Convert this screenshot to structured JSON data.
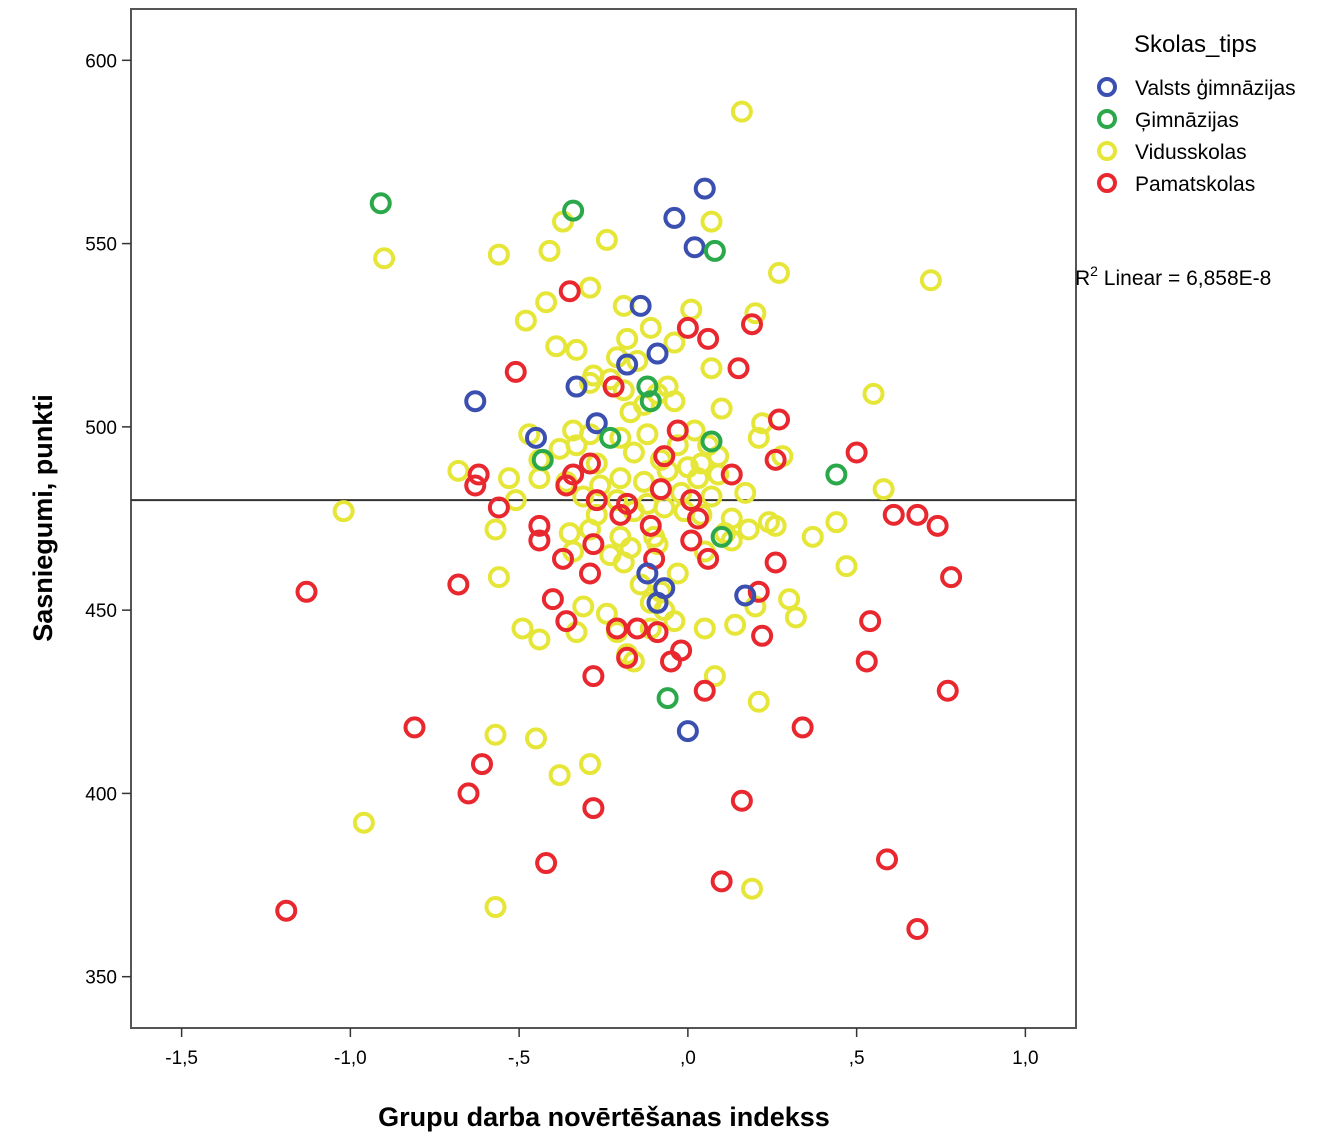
{
  "chart_data": {
    "type": "scatter",
    "xlabel": "Grupu darba novērtēšanas indekss",
    "ylabel": "Sasniegumi, punkti",
    "xlim": [
      -1.65,
      1.15
    ],
    "ylim": [
      336,
      614
    ],
    "x_ticks": [
      -1.5,
      -1.0,
      -0.5,
      0.0,
      0.5,
      1.0
    ],
    "x_tick_labels": [
      "-1,5",
      "-1,0",
      "-,5",
      ",0",
      ",5",
      "1,0"
    ],
    "y_ticks": [
      350,
      400,
      450,
      500,
      550,
      600
    ],
    "y_tick_labels": [
      "350",
      "400",
      "450",
      "500",
      "550",
      "600"
    ],
    "grid": false,
    "legend": {
      "title": "Skolas_tips",
      "placement": "right-top",
      "entries": [
        {
          "label": "Valsts ģimnāzijas",
          "color": "#3b4fb0"
        },
        {
          "label": "Ģimnāzijas",
          "color": "#2aa84a"
        },
        {
          "label": "Vidusskolas",
          "color": "#e6e639"
        },
        {
          "label": "Pamatskolas",
          "color": "#e8282e"
        }
      ]
    },
    "fit_line": {
      "type": "linear",
      "y": 480,
      "label_prefix": "R",
      "label_sup": "2",
      "label_suffix": " Linear = 6,858E-8"
    },
    "series": [
      {
        "name": "Vidusskolas",
        "color": "#e6e639",
        "points": [
          [
            0.16,
            586
          ],
          [
            0.07,
            556
          ],
          [
            -0.37,
            556
          ],
          [
            -0.56,
            547
          ],
          [
            -0.41,
            548
          ],
          [
            -0.24,
            551
          ],
          [
            -0.9,
            546
          ],
          [
            0.27,
            542
          ],
          [
            0.72,
            540
          ],
          [
            -0.29,
            538
          ],
          [
            -0.42,
            534
          ],
          [
            -0.19,
            533
          ],
          [
            0.01,
            532
          ],
          [
            0.2,
            531
          ],
          [
            -0.48,
            529
          ],
          [
            -0.11,
            527
          ],
          [
            -0.39,
            522
          ],
          [
            -0.33,
            521
          ],
          [
            -0.18,
            524
          ],
          [
            -0.04,
            523
          ],
          [
            -0.21,
            519
          ],
          [
            -0.15,
            518
          ],
          [
            0.07,
            516
          ],
          [
            -0.28,
            514
          ],
          [
            -0.29,
            512
          ],
          [
            -0.23,
            513
          ],
          [
            -0.19,
            510
          ],
          [
            -0.09,
            509
          ],
          [
            -0.06,
            511
          ],
          [
            -0.04,
            507
          ],
          [
            0.55,
            509
          ],
          [
            -0.17,
            504
          ],
          [
            -0.13,
            506
          ],
          [
            0.1,
            505
          ],
          [
            0.22,
            501
          ],
          [
            -0.47,
            498
          ],
          [
            -0.34,
            499
          ],
          [
            -0.29,
            498
          ],
          [
            -0.2,
            497
          ],
          [
            -0.12,
            498
          ],
          [
            -0.03,
            495
          ],
          [
            0.02,
            499
          ],
          [
            0.06,
            495
          ],
          [
            0.21,
            497
          ],
          [
            0.28,
            492
          ],
          [
            -0.44,
            491
          ],
          [
            -0.38,
            494
          ],
          [
            -0.33,
            495
          ],
          [
            -0.27,
            490
          ],
          [
            -0.16,
            493
          ],
          [
            -0.08,
            491
          ],
          [
            0.0,
            489
          ],
          [
            0.04,
            490
          ],
          [
            0.09,
            492
          ],
          [
            -0.68,
            488
          ],
          [
            -0.53,
            486
          ],
          [
            -0.44,
            486
          ],
          [
            -0.36,
            485
          ],
          [
            -0.26,
            484
          ],
          [
            -0.2,
            486
          ],
          [
            -0.13,
            485
          ],
          [
            -0.06,
            488
          ],
          [
            0.03,
            486
          ],
          [
            0.09,
            487
          ],
          [
            0.58,
            483
          ],
          [
            -0.51,
            480
          ],
          [
            -0.31,
            481
          ],
          [
            -0.21,
            480
          ],
          [
            -0.12,
            479
          ],
          [
            -0.02,
            482
          ],
          [
            0.07,
            481
          ],
          [
            0.17,
            482
          ],
          [
            -1.02,
            477
          ],
          [
            -0.27,
            476
          ],
          [
            -0.16,
            477
          ],
          [
            -0.07,
            478
          ],
          [
            -0.01,
            477
          ],
          [
            0.04,
            476
          ],
          [
            0.13,
            475
          ],
          [
            0.24,
            474
          ],
          [
            0.44,
            474
          ],
          [
            -0.57,
            472
          ],
          [
            -0.35,
            471
          ],
          [
            -0.29,
            472
          ],
          [
            -0.2,
            470
          ],
          [
            -0.1,
            470
          ],
          [
            0.11,
            471
          ],
          [
            0.18,
            472
          ],
          [
            0.26,
            473
          ],
          [
            0.37,
            470
          ],
          [
            -0.34,
            466
          ],
          [
            -0.23,
            465
          ],
          [
            -0.17,
            467
          ],
          [
            -0.09,
            468
          ],
          [
            0.05,
            466
          ],
          [
            0.13,
            469
          ],
          [
            0.47,
            462
          ],
          [
            -0.19,
            463
          ],
          [
            -0.03,
            460
          ],
          [
            -0.56,
            459
          ],
          [
            -0.14,
            457
          ],
          [
            -0.08,
            455
          ],
          [
            0.2,
            451
          ],
          [
            0.3,
            453
          ],
          [
            -0.31,
            451
          ],
          [
            -0.24,
            449
          ],
          [
            -0.11,
            452
          ],
          [
            -0.07,
            450
          ],
          [
            0.32,
            448
          ],
          [
            -0.49,
            445
          ],
          [
            -0.44,
            442
          ],
          [
            -0.33,
            444
          ],
          [
            -0.21,
            444
          ],
          [
            -0.11,
            445
          ],
          [
            -0.04,
            447
          ],
          [
            0.05,
            445
          ],
          [
            0.14,
            446
          ],
          [
            -0.18,
            438
          ],
          [
            -0.16,
            436
          ],
          [
            0.08,
            432
          ],
          [
            0.21,
            425
          ],
          [
            -0.57,
            416
          ],
          [
            -0.45,
            415
          ],
          [
            -0.38,
            405
          ],
          [
            -0.29,
            408
          ],
          [
            -0.96,
            392
          ],
          [
            -0.57,
            369
          ],
          [
            0.19,
            374
          ]
        ]
      },
      {
        "name": "Pamatskolas",
        "color": "#e8282e",
        "points": [
          [
            -0.35,
            537
          ],
          [
            0.19,
            528
          ],
          [
            0.0,
            527
          ],
          [
            0.06,
            524
          ],
          [
            -0.51,
            515
          ],
          [
            0.15,
            516
          ],
          [
            -0.22,
            511
          ],
          [
            0.27,
            502
          ],
          [
            -0.03,
            499
          ],
          [
            -0.07,
            492
          ],
          [
            0.5,
            493
          ],
          [
            0.26,
            491
          ],
          [
            -0.29,
            490
          ],
          [
            -0.62,
            487
          ],
          [
            -0.34,
            487
          ],
          [
            0.13,
            487
          ],
          [
            -0.63,
            484
          ],
          [
            -0.36,
            484
          ],
          [
            -0.08,
            483
          ],
          [
            -0.27,
            480
          ],
          [
            -0.18,
            479
          ],
          [
            0.01,
            480
          ],
          [
            -0.56,
            478
          ],
          [
            -0.2,
            476
          ],
          [
            0.61,
            476
          ],
          [
            0.68,
            476
          ],
          [
            0.74,
            473
          ],
          [
            0.03,
            475
          ],
          [
            -0.44,
            473
          ],
          [
            -0.11,
            473
          ],
          [
            -0.44,
            469
          ],
          [
            0.01,
            469
          ],
          [
            -0.28,
            468
          ],
          [
            0.06,
            464
          ],
          [
            -0.37,
            464
          ],
          [
            -0.1,
            464
          ],
          [
            0.26,
            463
          ],
          [
            -0.29,
            460
          ],
          [
            0.78,
            459
          ],
          [
            -0.68,
            457
          ],
          [
            -1.13,
            455
          ],
          [
            0.21,
            455
          ],
          [
            -0.4,
            453
          ],
          [
            0.54,
            447
          ],
          [
            -0.36,
            447
          ],
          [
            -0.21,
            445
          ],
          [
            -0.15,
            445
          ],
          [
            -0.09,
            444
          ],
          [
            0.22,
            443
          ],
          [
            -0.02,
            439
          ],
          [
            -0.05,
            436
          ],
          [
            0.53,
            436
          ],
          [
            -0.18,
            437
          ],
          [
            -0.28,
            432
          ],
          [
            0.05,
            428
          ],
          [
            0.77,
            428
          ],
          [
            -0.81,
            418
          ],
          [
            0.34,
            418
          ],
          [
            -0.61,
            408
          ],
          [
            -0.65,
            400
          ],
          [
            0.16,
            398
          ],
          [
            -0.28,
            396
          ],
          [
            0.59,
            382
          ],
          [
            -0.42,
            381
          ],
          [
            0.1,
            376
          ],
          [
            -1.19,
            368
          ],
          [
            0.68,
            363
          ]
        ]
      },
      {
        "name": "Valsts ģimnāzijas",
        "color": "#3b4fb0",
        "points": [
          [
            0.05,
            565
          ],
          [
            -0.04,
            557
          ],
          [
            0.02,
            549
          ],
          [
            -0.14,
            533
          ],
          [
            -0.09,
            520
          ],
          [
            -0.18,
            517
          ],
          [
            -0.33,
            511
          ],
          [
            -0.63,
            507
          ],
          [
            -0.45,
            497
          ],
          [
            -0.27,
            501
          ],
          [
            0.17,
            454
          ],
          [
            -0.12,
            460
          ],
          [
            -0.07,
            456
          ],
          [
            -0.09,
            452
          ],
          [
            0.0,
            417
          ]
        ]
      },
      {
        "name": "Ģimnāzijas",
        "color": "#2aa84a",
        "points": [
          [
            -0.91,
            561
          ],
          [
            -0.34,
            559
          ],
          [
            0.08,
            548
          ],
          [
            -0.12,
            511
          ],
          [
            -0.11,
            507
          ],
          [
            -0.23,
            497
          ],
          [
            -0.43,
            491
          ],
          [
            0.07,
            496
          ],
          [
            0.44,
            487
          ],
          [
            0.1,
            470
          ],
          [
            -0.06,
            426
          ]
        ]
      }
    ]
  }
}
